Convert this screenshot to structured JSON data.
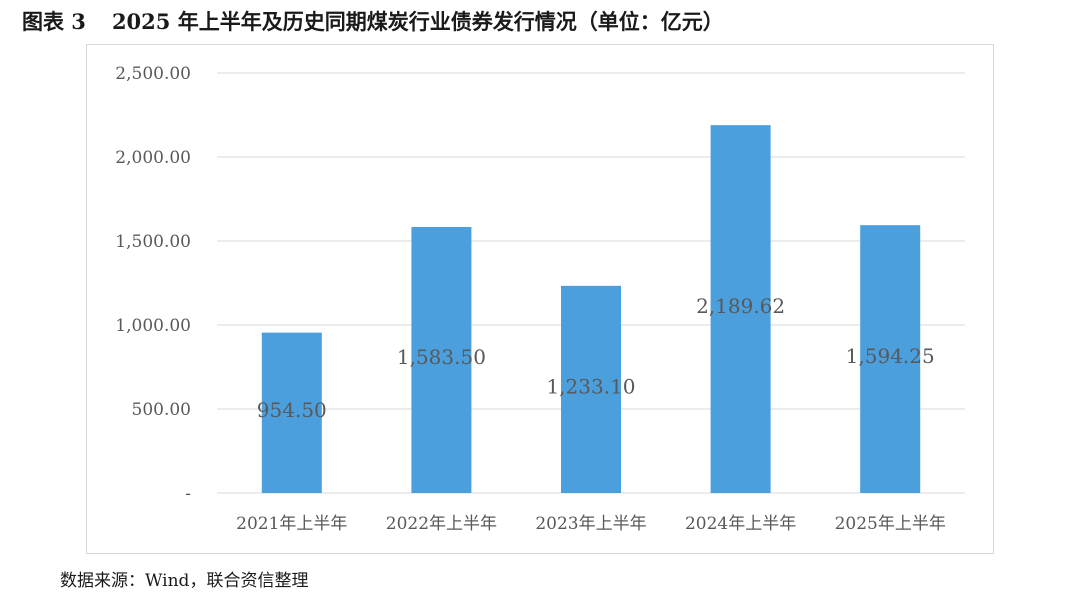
{
  "title": {
    "prefix": "图表 3",
    "text": "2025 年上半年及历史同期煤炭行业债券发行情况（单位：亿元）"
  },
  "source": "数据来源：Wind，联合资信整理",
  "colors": {
    "bar": "#4a9fdc",
    "grid": "#d9d9d9",
    "text": "#595959"
  },
  "chart_data": {
    "type": "bar",
    "categories": [
      "2021年上半年",
      "2022年上半年",
      "2023年上半年",
      "2024年上半年",
      "2025年上半年"
    ],
    "values": [
      954.5,
      1583.5,
      1233.1,
      2189.62,
      1594.25
    ],
    "data_labels": [
      "954.50",
      "1,583.50",
      "1,233.10",
      "2,189.62",
      "1,594.25"
    ],
    "yticks": [
      "-",
      "500.00",
      "1,000.00",
      "1,500.00",
      "2,000.00",
      "2,500.00"
    ],
    "ylim": [
      0,
      2500
    ],
    "grid": true,
    "legend": "none"
  }
}
